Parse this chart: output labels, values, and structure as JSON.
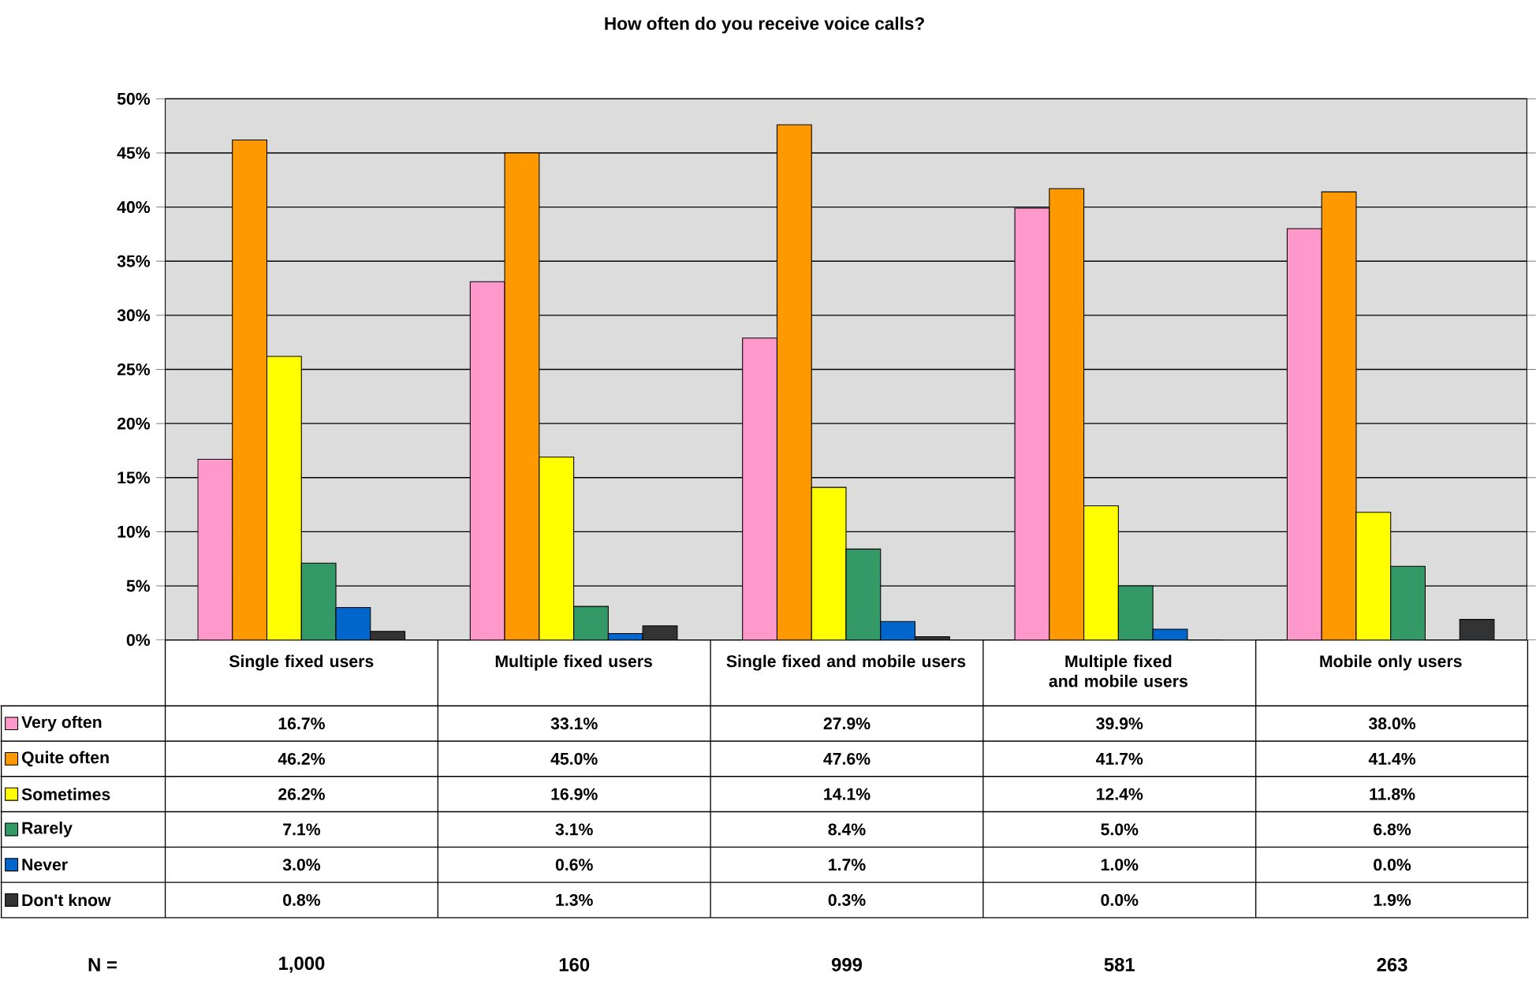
{
  "chart_data": {
    "type": "bar",
    "title": "How often do you receive voice calls?",
    "categories": [
      "Single fixed users",
      "Multiple fixed users",
      "Single fixed and mobile users",
      "Multiple fixed and mobile users",
      "Mobile only users"
    ],
    "series": [
      {
        "name": "Very often",
        "color": "#ff99cc",
        "values": [
          16.7,
          33.1,
          27.9,
          39.9,
          38.0
        ],
        "value_labels": [
          "16.7%",
          "33.1%",
          "27.9%",
          "39.9%",
          "38.0%"
        ]
      },
      {
        "name": "Quite often",
        "color": "#ff9900",
        "values": [
          46.2,
          45.0,
          47.6,
          41.7,
          41.4
        ],
        "value_labels": [
          "46.2%",
          "45.0%",
          "47.6%",
          "41.7%",
          "41.4%"
        ]
      },
      {
        "name": "Sometimes",
        "color": "#ffff00",
        "values": [
          26.2,
          16.9,
          14.1,
          12.4,
          11.8
        ],
        "value_labels": [
          "26.2%",
          "16.9%",
          "14.1%",
          "12.4%",
          "11.8%"
        ]
      },
      {
        "name": "Rarely",
        "color": "#339966",
        "values": [
          7.1,
          3.1,
          8.4,
          5.0,
          6.8
        ],
        "value_labels": [
          "7.1%",
          "3.1%",
          "8.4%",
          "5.0%",
          "6.8%"
        ]
      },
      {
        "name": "Never",
        "color": "#0066cc",
        "values": [
          3.0,
          0.6,
          1.7,
          1.0,
          0.0
        ],
        "value_labels": [
          "3.0%",
          "0.6%",
          "1.7%",
          "1.0%",
          "0.0%"
        ]
      },
      {
        "name": "Don't know",
        "color": "#333333",
        "values": [
          0.8,
          1.3,
          0.3,
          0.0,
          1.9
        ],
        "value_labels": [
          "0.8%",
          "1.3%",
          "0.3%",
          "0.0%",
          "1.9%"
        ]
      }
    ],
    "ylim": [
      0,
      50
    ],
    "yticks": [
      {
        "value": 0,
        "label": "0%"
      },
      {
        "value": 5,
        "label": "5%"
      },
      {
        "value": 10,
        "label": "10%"
      },
      {
        "value": 15,
        "label": "15%"
      },
      {
        "value": 20,
        "label": "20%"
      },
      {
        "value": 25,
        "label": "25%"
      },
      {
        "value": 30,
        "label": "30%"
      },
      {
        "value": 35,
        "label": "35%"
      },
      {
        "value": 40,
        "label": "40%"
      },
      {
        "value": 45,
        "label": "45%"
      },
      {
        "value": 50,
        "label": "50%"
      }
    ],
    "grid": "y",
    "legend": "bottom left",
    "annotations": [
      "N =",
      "1,000",
      "160",
      "999",
      "581",
      "263"
    ]
  }
}
